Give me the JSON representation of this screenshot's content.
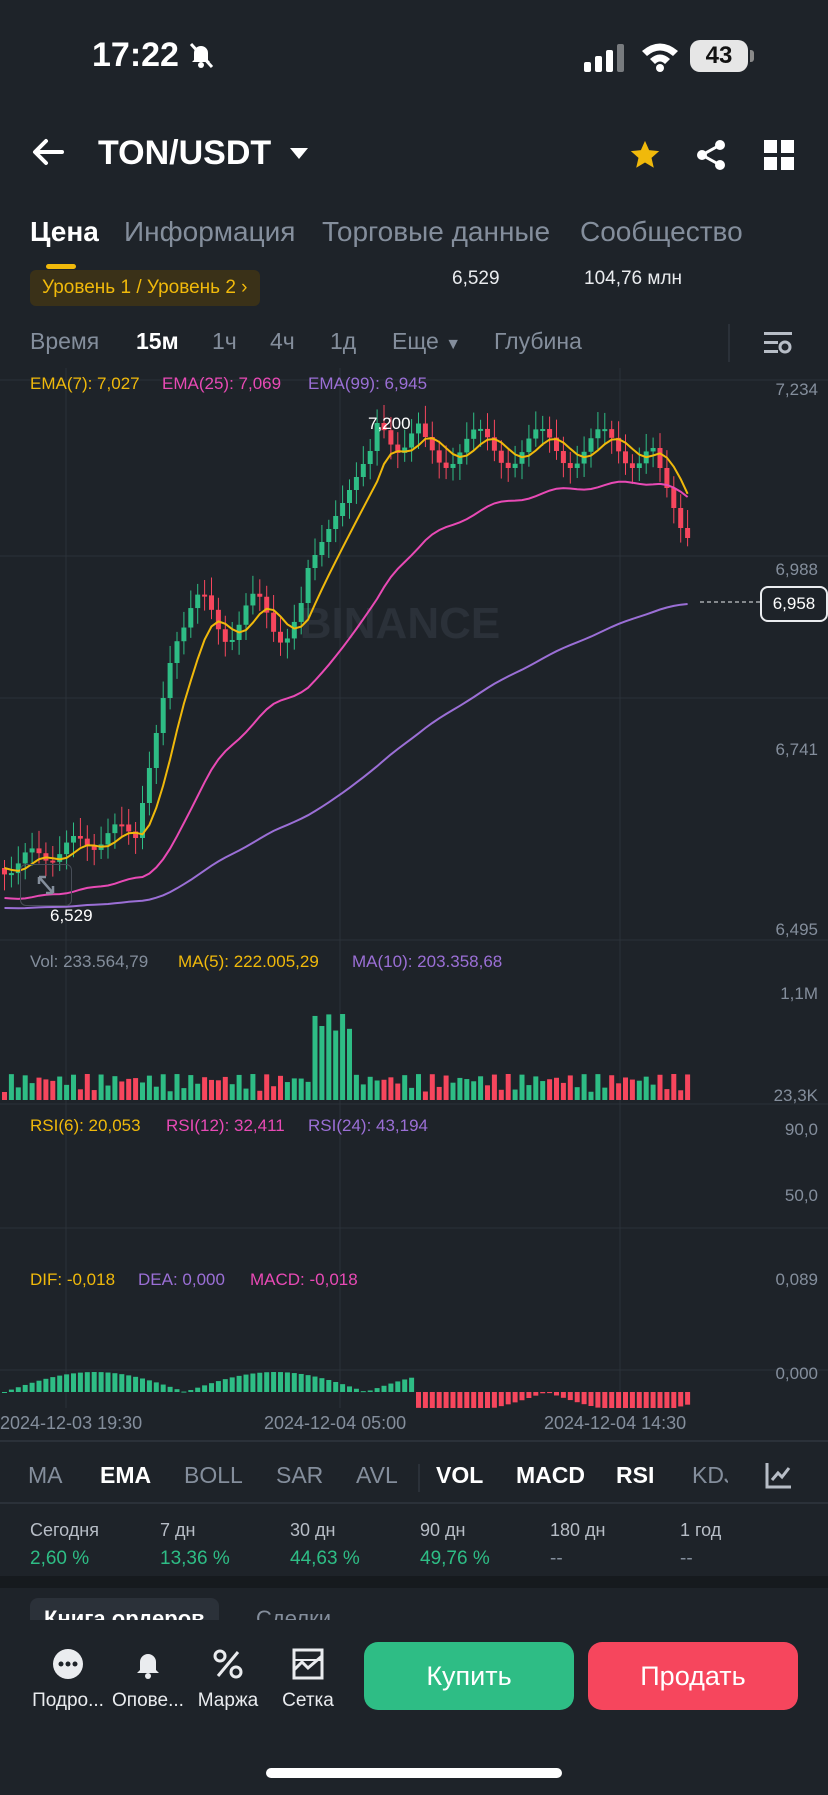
{
  "status_bar": {
    "time": "17:22",
    "battery": "43"
  },
  "header": {
    "pair": "TON/USDT"
  },
  "tabs": [
    {
      "label": "Цена",
      "active": true
    },
    {
      "label": "Информация",
      "active": false
    },
    {
      "label": "Торговые данные",
      "active": false
    },
    {
      "label": "Сообщество",
      "active": false
    }
  ],
  "level_badge": "Уровень 1 / Уровень 2",
  "cutoff": {
    "low": "6,529",
    "volume": "104,76 млн"
  },
  "timeframes": [
    {
      "label": "Время",
      "active": false
    },
    {
      "label": "15м",
      "active": true
    },
    {
      "label": "1ч",
      "active": false
    },
    {
      "label": "4ч",
      "active": false
    },
    {
      "label": "1д",
      "active": false
    },
    {
      "label": "Еще",
      "active": false
    },
    {
      "label": "Глубина",
      "active": false
    }
  ],
  "main_legend": {
    "ema7": "EMA(7): 7,027",
    "ema25": "EMA(25): 7,069",
    "ema99": "EMA(99): 6,945"
  },
  "price_axis": [
    "7,234",
    "6,988",
    "6,741",
    "6,495"
  ],
  "markers": {
    "high": "7,200",
    "low": "6,529",
    "current": "6,958"
  },
  "watermark": "BINANCE",
  "vol_legend": {
    "vol": "Vol: 233.564,79",
    "ma5": "MA(5): 222.005,29",
    "ma10": "MA(10): 203.358,68"
  },
  "vol_axis": [
    "1,1M",
    "23,3K"
  ],
  "rsi_legend": {
    "rsi6": "RSI(6): 20,053",
    "rsi12": "RSI(12): 32,411",
    "rsi24": "RSI(24): 43,194"
  },
  "rsi_axis": [
    "90,0",
    "50,0"
  ],
  "macd_legend": {
    "dif": "DIF: -0,018",
    "dea": "DEA: 0,000",
    "macd": "MACD: -0,018"
  },
  "macd_axis": [
    "0,089",
    "0,000"
  ],
  "time_axis": [
    "2024-12-03 19:30",
    "2024-12-04 05:00",
    "2024-12-04 14:30"
  ],
  "indicators": [
    {
      "label": "MA",
      "active": false
    },
    {
      "label": "EMA",
      "active": true
    },
    {
      "label": "BOLL",
      "active": false
    },
    {
      "label": "SAR",
      "active": false
    },
    {
      "label": "AVL",
      "active": false
    },
    {
      "label": "VOL",
      "active": true
    },
    {
      "label": "MACD",
      "active": true
    },
    {
      "label": "RSI",
      "active": true
    },
    {
      "label": "KDJ",
      "active": false
    }
  ],
  "performance": [
    {
      "label": "Сегодня",
      "value": "2,60 %"
    },
    {
      "label": "7 дн",
      "value": "13,36 %"
    },
    {
      "label": "30 дн",
      "value": "44,63 %"
    },
    {
      "label": "90 дн",
      "value": "49,76 %"
    },
    {
      "label": "180 дн",
      "value": "--"
    },
    {
      "label": "1 год",
      "value": "--"
    }
  ],
  "lower_tabs": [
    "Книга ордеров",
    "Сделки"
  ],
  "bottom_nav": [
    {
      "label": "Подро...",
      "icon": "more-icon"
    },
    {
      "label": "Опове...",
      "icon": "bell-icon"
    },
    {
      "label": "Маржа",
      "icon": "margin-icon"
    },
    {
      "label": "Сетка",
      "icon": "grid-bot-icon"
    }
  ],
  "buttons": {
    "buy": "Купить",
    "sell": "Продать"
  },
  "colors": {
    "up": "#2ebd85",
    "down": "#f6465d",
    "ema7": "#f0b90b",
    "ema25": "#e84ab5",
    "ema99": "#9b6fd6",
    "accent": "#f0b90b"
  }
}
